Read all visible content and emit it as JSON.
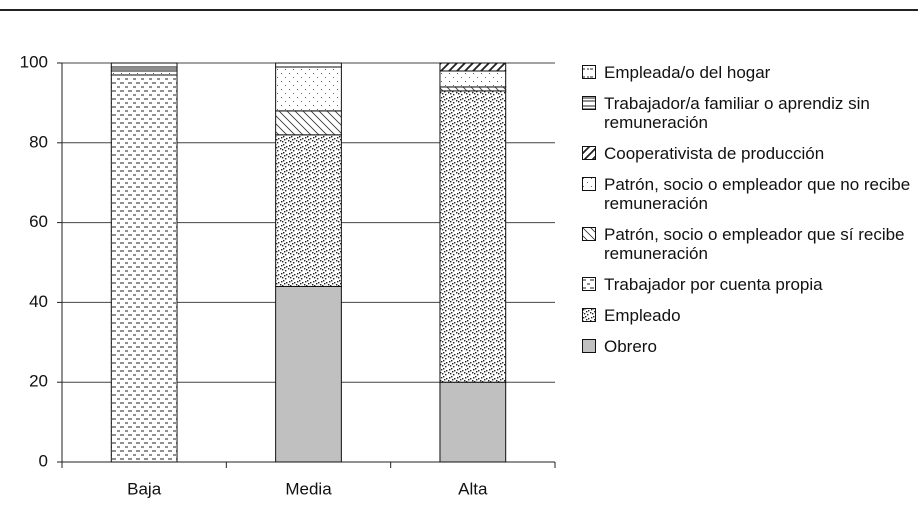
{
  "chart_data": {
    "type": "stacked_bar",
    "categories": [
      "Baja",
      "Media",
      "Alta"
    ],
    "series": [
      {
        "name": "Obrero",
        "color": "#c0c0c0",
        "values": [
          0,
          44,
          20
        ]
      },
      {
        "name": "Empleado",
        "color": "#ffffff",
        "values": [
          0,
          38,
          73
        ]
      },
      {
        "name": "Trabajador por cuenta propia",
        "color": "#ffffff",
        "values": [
          97,
          0,
          0
        ]
      },
      {
        "name": "Patrón, socio o empleador que sí recibe remuneración",
        "color": "#ffffff",
        "values": [
          0,
          6,
          1
        ]
      },
      {
        "name": "Patrón, socio o empleador que no recibe remuneración",
        "color": "#ffffff",
        "values": [
          1,
          11,
          4
        ]
      },
      {
        "name": "Cooperativista de producción",
        "color": "#ffffff",
        "values": [
          0,
          0,
          2
        ]
      },
      {
        "name": "Trabajador/a familiar o aprendiz sin remuneración",
        "color": "#ffffff",
        "values": [
          1,
          0,
          0
        ]
      },
      {
        "name": "Empleada/o del hogar",
        "color": "#ffffff",
        "values": [
          1,
          1,
          0
        ]
      }
    ],
    "ylim": [
      0,
      100
    ],
    "yticks": [
      0,
      20,
      40,
      60,
      80,
      100
    ],
    "grid": true,
    "legend": "right"
  }
}
